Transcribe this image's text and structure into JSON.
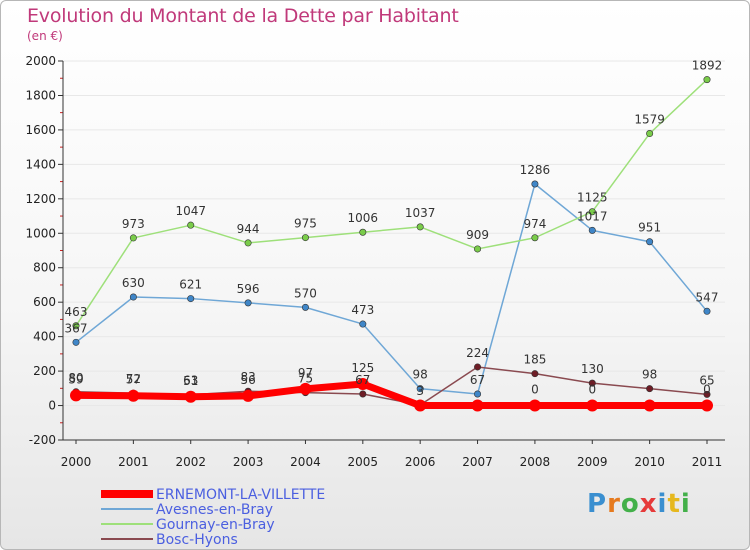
{
  "title": "Evolution du Montant de la Dette par Habitant",
  "unit": "(en €)",
  "brand": "Proxiti",
  "colors": {
    "title": "#c0397a",
    "axis": "#333333",
    "grid": "#e8e8e8",
    "legend_text": "#4b5fe0"
  },
  "chart_data": {
    "type": "line",
    "x": [
      "2000",
      "2001",
      "2002",
      "2003",
      "2004",
      "2005",
      "2006",
      "2007",
      "2008",
      "2009",
      "2010",
      "2011"
    ],
    "ylim": [
      -200,
      2000
    ],
    "yticks": [
      -200,
      0,
      200,
      400,
      600,
      800,
      1000,
      1200,
      1400,
      1600,
      1800,
      2000
    ],
    "grid": true,
    "legend_position": "bottom-left",
    "series": [
      {
        "name": "ERNEMONT-LA-VILLETTE",
        "color": "#ff0000",
        "width": 7,
        "values": [
          59,
          57,
          51,
          56,
          97,
          125,
          0,
          0,
          0,
          0,
          0,
          0
        ],
        "labels": [
          "59",
          "57",
          "51",
          "56",
          "97",
          "125",
          "",
          "",
          "",
          "",
          "",
          ""
        ]
      },
      {
        "name": "Avesnes-en-Bray",
        "color": "#6fa7d6",
        "marker": "#3f86c8",
        "width": 1.5,
        "values": [
          367,
          630,
          621,
          596,
          570,
          473,
          98,
          67,
          1286,
          1017,
          951,
          547
        ],
        "labels": [
          "367",
          "630",
          "621",
          "596",
          "570",
          "473",
          "98",
          "67",
          "1286",
          "1017",
          "951",
          "547"
        ]
      },
      {
        "name": "Gournay-en-Bray",
        "color": "#9ee07a",
        "marker": "#7acc4a",
        "width": 1.5,
        "values": [
          463,
          973,
          1047,
          944,
          975,
          1006,
          1037,
          909,
          974,
          1125,
          1579,
          1892
        ],
        "labels": [
          "463",
          "973",
          "1047",
          "944",
          "975",
          "1006",
          "1037",
          "909",
          "974",
          "1125",
          "1579",
          "1892"
        ]
      },
      {
        "name": "Bosc-Hyons",
        "color": "#8a4a50",
        "marker": "#6e1d26",
        "width": 1.5,
        "values": [
          80,
          72,
          63,
          83,
          75,
          67,
          3,
          224,
          185,
          130,
          98,
          65
        ],
        "labels": [
          "80",
          "72",
          "63",
          "83",
          "75",
          "67",
          "3",
          "224",
          "185",
          "130",
          "98",
          "65"
        ]
      }
    ],
    "extra_labels": [
      {
        "x": "2008",
        "y": 0,
        "text": "0"
      },
      {
        "x": "2009",
        "y": 0,
        "text": "0"
      },
      {
        "x": "2011",
        "y": 0,
        "text": "0"
      }
    ]
  }
}
